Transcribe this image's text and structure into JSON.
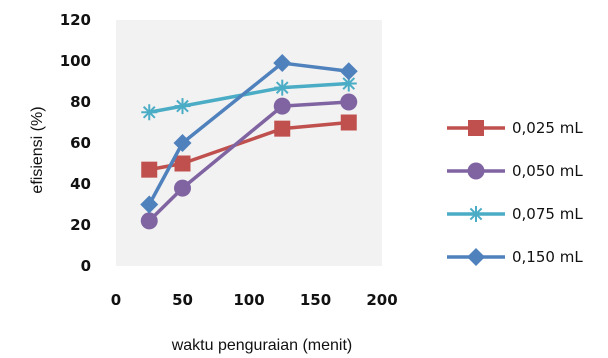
{
  "chart_data": {
    "type": "line",
    "title": "",
    "xlabel": "waktu penguraian (menit)",
    "ylabel": "efisiensi (%)",
    "xlim": [
      0,
      200
    ],
    "ylim": [
      0,
      120
    ],
    "x_ticks": [
      0,
      50,
      100,
      150,
      200
    ],
    "y_ticks": [
      0,
      20,
      40,
      60,
      80,
      100,
      120
    ],
    "grid": false,
    "legend_position": "right",
    "series": [
      {
        "name": "0,025 mL",
        "color": "#c0504d",
        "marker": "square",
        "x": [
          25,
          50,
          125,
          175
        ],
        "y": [
          47,
          50,
          67,
          70
        ]
      },
      {
        "name": "0,050 mL",
        "color": "#8064a2",
        "marker": "circle",
        "x": [
          25,
          50,
          125,
          175
        ],
        "y": [
          22,
          38,
          78,
          80
        ]
      },
      {
        "name": "0,075 mL",
        "color": "#4bacc6",
        "marker": "asterisk",
        "x": [
          25,
          50,
          125,
          175
        ],
        "y": [
          75,
          78,
          87,
          89
        ]
      },
      {
        "name": "0,150 mL",
        "color": "#4f81bd",
        "marker": "diamond",
        "x": [
          25,
          50,
          125,
          175
        ],
        "y": [
          30,
          60,
          99,
          95
        ]
      }
    ]
  }
}
